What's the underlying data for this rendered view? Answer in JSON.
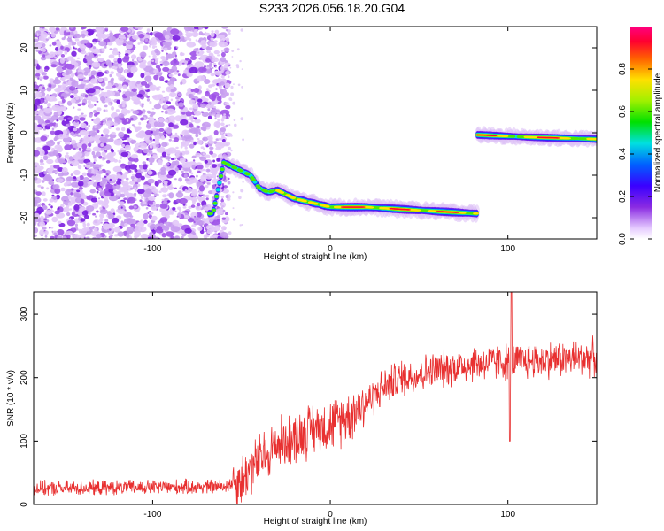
{
  "title": "S233.2026.056.18.20.G04",
  "chart_data": [
    {
      "type": "heatmap",
      "xlabel": "Height of straight line (km)",
      "ylabel": "Frequency (Hz)",
      "xlim": [
        -167,
        150
      ],
      "ylim": [
        -25,
        25
      ],
      "xticks": [
        -100,
        0,
        100
      ],
      "yticks": [
        -20,
        -10,
        0,
        10,
        20
      ],
      "colorbar": {
        "label": "Normalized spectral amplitude",
        "range": [
          0,
          1
        ],
        "ticks": [
          0.0,
          0.2,
          0.4,
          0.6,
          0.8
        ]
      },
      "noise_region_x": [
        -167,
        -57
      ],
      "ridge": [
        [
          -66,
          -19
        ],
        [
          -60,
          -7
        ],
        [
          -55,
          -8
        ],
        [
          -50,
          -9
        ],
        [
          -45,
          -10
        ],
        [
          -40,
          -13
        ],
        [
          -35,
          -14
        ],
        [
          -30,
          -13.5
        ],
        [
          -20,
          -15.5
        ],
        [
          -10,
          -16.5
        ],
        [
          0,
          -17.5
        ],
        [
          10,
          -17.5
        ],
        [
          20,
          -17.5
        ],
        [
          40,
          -18
        ],
        [
          60,
          -18.5
        ],
        [
          82,
          -19
        ]
      ],
      "second_ridge": [
        [
          83,
          -0.5
        ],
        [
          110,
          -1
        ],
        [
          150,
          -1.5
        ]
      ]
    },
    {
      "type": "line",
      "xlabel": "Height of straight line (km)",
      "ylabel": "SNR (10 * v/v)",
      "xlim": [
        -167,
        150
      ],
      "ylim": [
        0,
        335
      ],
      "xticks": [
        -100,
        0,
        100
      ],
      "yticks": [
        0,
        100,
        200,
        300
      ],
      "color": "#e83030",
      "trend": [
        [
          -167,
          25
        ],
        [
          -60,
          28
        ],
        [
          -50,
          40
        ],
        [
          -40,
          70
        ],
        [
          -30,
          95
        ],
        [
          -20,
          105
        ],
        [
          -10,
          120
        ],
        [
          0,
          125
        ],
        [
          10,
          140
        ],
        [
          20,
          160
        ],
        [
          30,
          185
        ],
        [
          40,
          200
        ],
        [
          60,
          212
        ],
        [
          80,
          222
        ],
        [
          100,
          225
        ],
        [
          120,
          228
        ],
        [
          150,
          232
        ]
      ],
      "features": [
        {
          "x": 101,
          "value": 100,
          "kind": "dip"
        },
        {
          "x": 102,
          "value": 335,
          "kind": "spike"
        }
      ]
    }
  ]
}
